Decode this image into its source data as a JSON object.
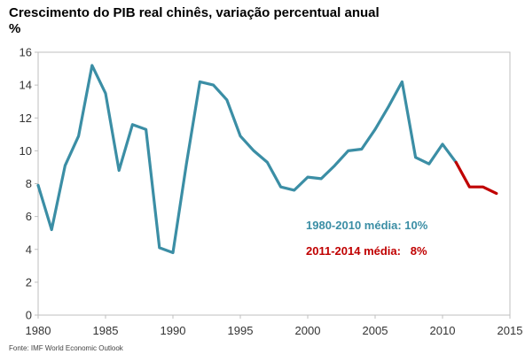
{
  "chart_data": {
    "type": "line",
    "title": "Crescimento do PIB real chinês, variação percentual anual",
    "ylabel": "%",
    "xlabel": "",
    "xlim": [
      1980,
      2015
    ],
    "ylim": [
      0,
      16
    ],
    "x_ticks": [
      1980,
      1985,
      1990,
      1995,
      2000,
      2005,
      2010,
      2015
    ],
    "y_ticks": [
      0,
      2,
      4,
      6,
      8,
      10,
      12,
      14,
      16
    ],
    "grid": false,
    "legend": "none",
    "series": [
      {
        "color": "#3b8ea5",
        "x": [
          1980,
          1981,
          1982,
          1983,
          1984,
          1985,
          1986,
          1987,
          1988,
          1989,
          1990,
          1991,
          1992,
          1993,
          1994,
          1995,
          1996,
          1997,
          1998,
          1999,
          2000,
          2001,
          2002,
          2003,
          2004,
          2005,
          2006,
          2007,
          2008,
          2009,
          2010,
          2011
        ],
        "values": [
          7.9,
          5.2,
          9.1,
          10.9,
          15.2,
          13.5,
          8.8,
          11.6,
          11.3,
          4.1,
          3.8,
          9.2,
          14.2,
          14.0,
          13.1,
          10.9,
          10.0,
          9.3,
          7.8,
          7.6,
          8.4,
          8.3,
          9.1,
          10.0,
          10.1,
          11.3,
          12.7,
          14.2,
          9.6,
          9.2,
          10.4,
          9.3
        ]
      },
      {
        "color": "#c00000",
        "x": [
          2011,
          2012,
          2013,
          2014
        ],
        "values": [
          9.3,
          7.8,
          7.8,
          7.4
        ]
      }
    ],
    "annotations": [
      {
        "text": "1980-2010 média: 10%",
        "color": "#3b8ea5"
      },
      {
        "text": "2011-2014 média:   8%",
        "color": "#c00000"
      }
    ],
    "source": "Fonte: IMF World Economic Outlook"
  }
}
